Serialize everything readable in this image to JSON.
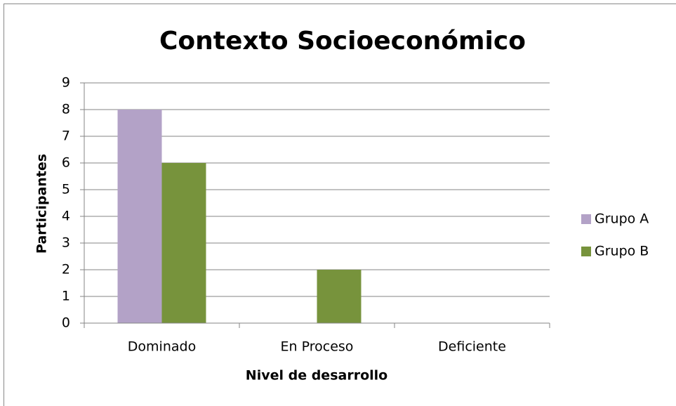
{
  "chart_data": {
    "type": "bar",
    "title": "Contexto Socioeconómico",
    "x_label": "Nivel de desarrollo",
    "y_label": "Participantes",
    "categories": [
      "Dominado",
      "En Proceso",
      "Deficiente"
    ],
    "series": [
      {
        "name": "Grupo A",
        "color": "#b3a2c7",
        "values": [
          8,
          0,
          0
        ]
      },
      {
        "name": "Grupo B",
        "color": "#77933c",
        "values": [
          6,
          2,
          0
        ]
      }
    ],
    "ylim": [
      0,
      9
    ],
    "yticks": [
      0,
      1,
      2,
      3,
      4,
      5,
      6,
      7,
      8,
      9
    ],
    "grid": true,
    "legend": "right"
  }
}
